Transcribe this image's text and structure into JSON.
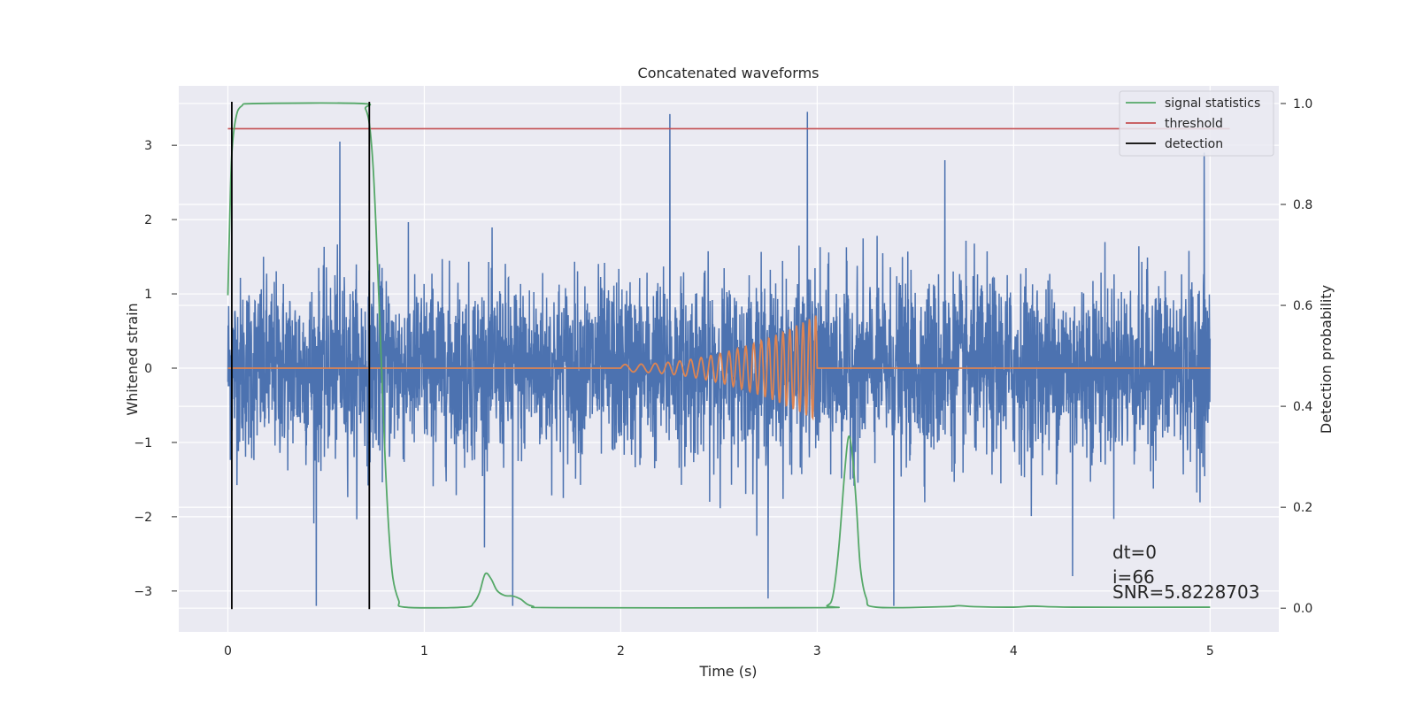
{
  "chart_data": {
    "type": "line",
    "title": "Concatenated waveforms",
    "xlabel": "Time (s)",
    "ylabel": "Whitened strain",
    "y2label": "Detection probability",
    "xlim": [
      -0.25,
      5.35
    ],
    "ylim": [
      -3.55,
      3.8
    ],
    "y2lim": [
      -0.047,
      1.035
    ],
    "xticks": [
      0,
      1,
      2,
      3,
      4,
      5
    ],
    "yticks": [
      -3,
      -2,
      -1,
      0,
      1,
      2,
      3
    ],
    "y2ticks": [
      0.0,
      0.2,
      0.4,
      0.6,
      0.8,
      1.0
    ],
    "xtick_labels": [
      "0",
      "1",
      "2",
      "3",
      "4",
      "5"
    ],
    "ytick_labels": [
      "−3",
      "−2",
      "−1",
      "0",
      "1",
      "2",
      "3"
    ],
    "y2tick_labels": [
      "0.0",
      "0.2",
      "0.4",
      "0.6",
      "0.8",
      "1.0"
    ],
    "grid": true,
    "legend_position": "top-right",
    "legend": [
      {
        "name": "signal statistics",
        "color": "#55a868"
      },
      {
        "name": "threshold",
        "color": "#c44e52"
      },
      {
        "name": "detection",
        "color": "#000000"
      }
    ],
    "noise_color": "#4c72b0",
    "template_color": "#dd8452",
    "noise_range": [
      0,
      5
    ],
    "noise_spread": 0.6,
    "noise_peaks": [
      [
        0.45,
        -3.2
      ],
      [
        0.57,
        3.05
      ],
      [
        1.45,
        -3.2
      ],
      [
        2.25,
        3.42
      ],
      [
        2.75,
        -3.1
      ],
      [
        2.95,
        3.45
      ],
      [
        3.39,
        -3.2
      ],
      [
        3.65,
        2.8
      ],
      [
        4.3,
        -2.8
      ],
      [
        4.97,
        2.9
      ]
    ],
    "template_chirp": {
      "start": 2.0,
      "end": 3.0,
      "amp_start": 0.05,
      "amp_end": 0.72,
      "f_start": 11,
      "f_end": 32
    },
    "signal_statistics": [
      [
        0.0,
        0.62
      ],
      [
        0.01,
        0.78
      ],
      [
        0.02,
        0.9
      ],
      [
        0.04,
        0.97
      ],
      [
        0.07,
        0.995
      ],
      [
        0.15,
        1.0
      ],
      [
        0.68,
        1.0
      ],
      [
        0.7,
        0.99
      ],
      [
        0.72,
        0.96
      ],
      [
        0.74,
        0.87
      ],
      [
        0.76,
        0.7
      ],
      [
        0.78,
        0.5
      ],
      [
        0.8,
        0.3
      ],
      [
        0.82,
        0.15
      ],
      [
        0.84,
        0.06
      ],
      [
        0.87,
        0.015
      ],
      [
        0.9,
        0.002
      ],
      [
        1.2,
        0.002
      ],
      [
        1.25,
        0.01
      ],
      [
        1.28,
        0.03
      ],
      [
        1.31,
        0.068
      ],
      [
        1.34,
        0.058
      ],
      [
        1.37,
        0.035
      ],
      [
        1.41,
        0.025
      ],
      [
        1.45,
        0.024
      ],
      [
        1.49,
        0.018
      ],
      [
        1.55,
        0.004
      ],
      [
        1.7,
        0.001
      ],
      [
        3.0,
        0.001
      ],
      [
        3.05,
        0.005
      ],
      [
        3.08,
        0.025
      ],
      [
        3.11,
        0.12
      ],
      [
        3.14,
        0.27
      ],
      [
        3.16,
        0.34
      ],
      [
        3.18,
        0.3
      ],
      [
        3.2,
        0.2
      ],
      [
        3.22,
        0.08
      ],
      [
        3.25,
        0.02
      ],
      [
        3.3,
        0.002
      ],
      [
        3.65,
        0.003
      ],
      [
        3.72,
        0.005
      ],
      [
        3.8,
        0.003
      ],
      [
        4.0,
        0.002
      ],
      [
        4.1,
        0.004
      ],
      [
        4.3,
        0.002
      ],
      [
        5.0,
        0.002
      ]
    ],
    "threshold": 0.95,
    "threshold_range": [
      0.0,
      5.1
    ],
    "detections": [
      0.02,
      0.72
    ],
    "annotations": [
      "dt=0",
      "i=66",
      "SNR=5.8228703"
    ]
  }
}
